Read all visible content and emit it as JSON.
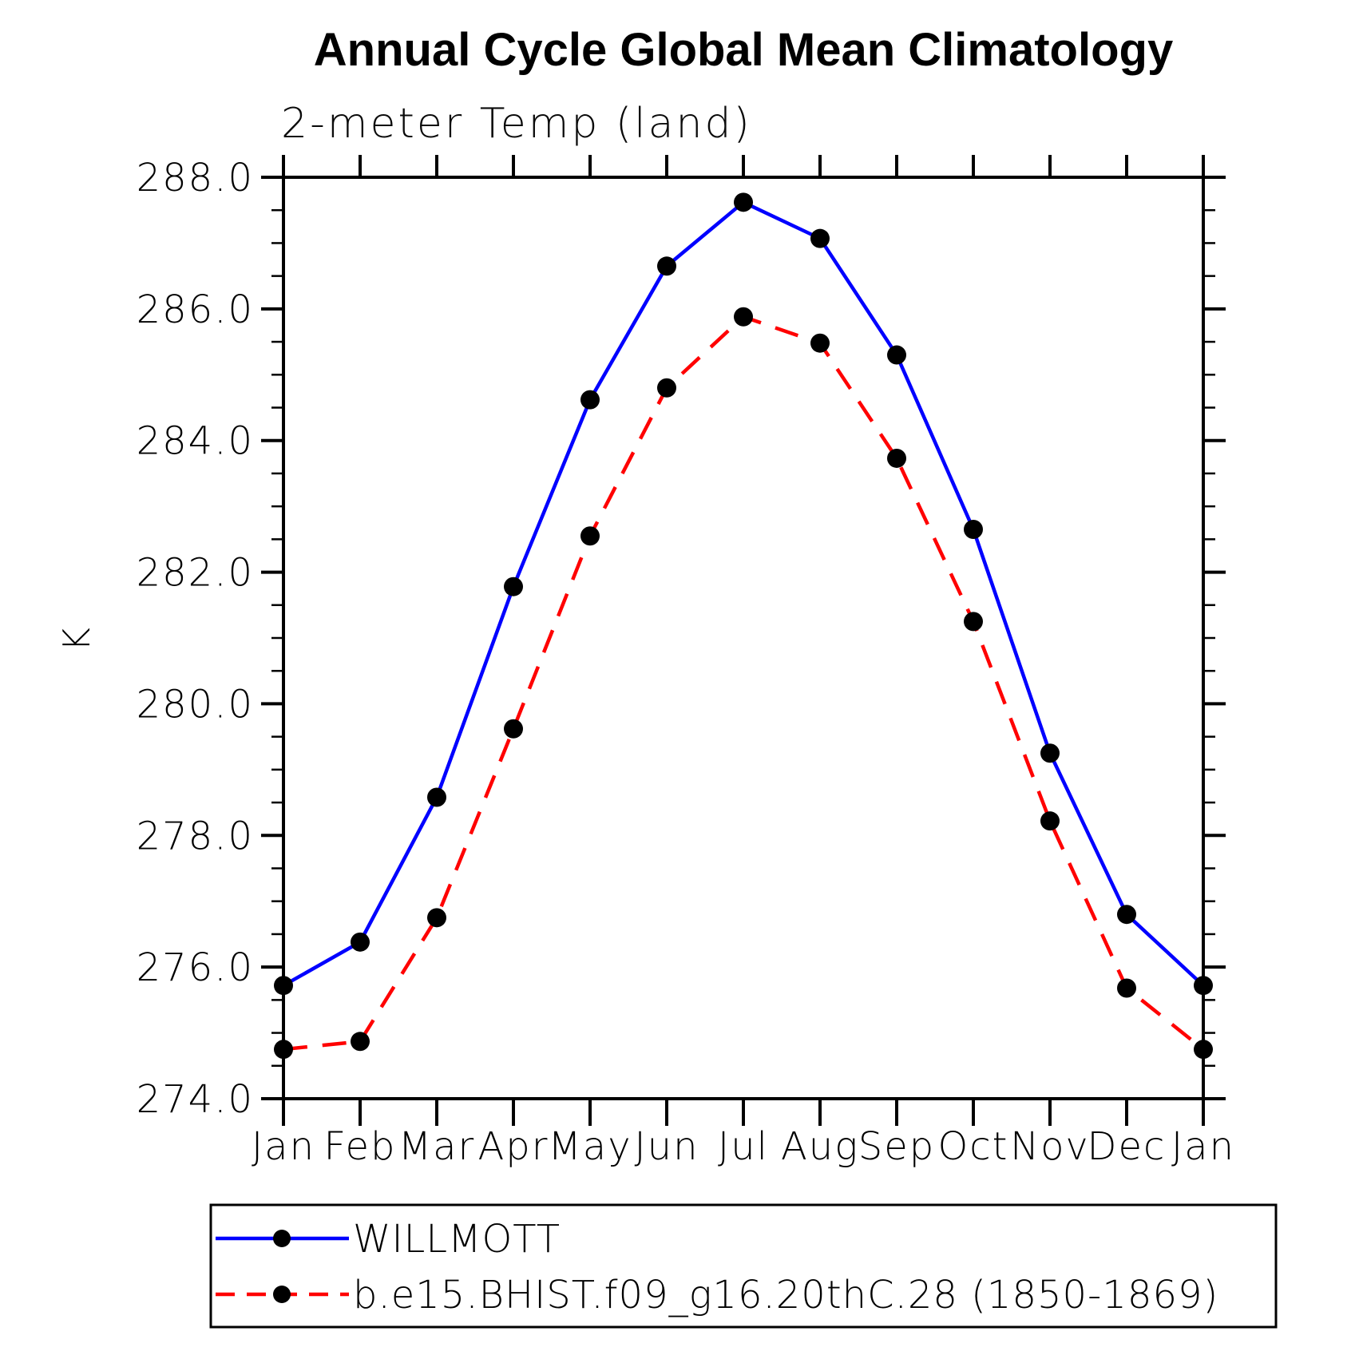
{
  "chart_data": {
    "type": "line",
    "title": "Annual Cycle Global Mean Climatology",
    "subtitle": "2-meter Temp (land)",
    "ylabel": "K",
    "ylim": [
      274.0,
      288.0
    ],
    "y_major_step": 2.0,
    "y_minor_step": 0.5,
    "y_tick_labels": [
      "274.0",
      "276.0",
      "278.0",
      "280.0",
      "282.0",
      "284.0",
      "286.0",
      "288.0"
    ],
    "x_tick_labels": [
      "Jan",
      "Feb",
      "Mar",
      "Apr",
      "May",
      "Jun",
      "Jul",
      "Aug",
      "Sep",
      "Oct",
      "Nov",
      "Dec",
      "Jan"
    ],
    "grid": false,
    "legend_position": "bottom",
    "marker": {
      "shape": "circle",
      "color": "#000000"
    },
    "series": [
      {
        "name": "WILLMOTT",
        "color": "#0000ff",
        "line_style": "solid",
        "values": [
          275.72,
          276.38,
          278.58,
          281.78,
          284.62,
          286.65,
          287.62,
          287.07,
          285.3,
          282.65,
          279.25,
          276.8,
          275.72
        ]
      },
      {
        "name": "b.e15.BHIST.f09_g16.20thC.28 (1850-1869)",
        "color": "#ff0000",
        "line_style": "dashed",
        "values": [
          274.75,
          274.87,
          276.75,
          279.62,
          282.55,
          284.8,
          285.88,
          285.48,
          283.73,
          281.25,
          278.22,
          275.68,
          274.75
        ]
      }
    ]
  }
}
